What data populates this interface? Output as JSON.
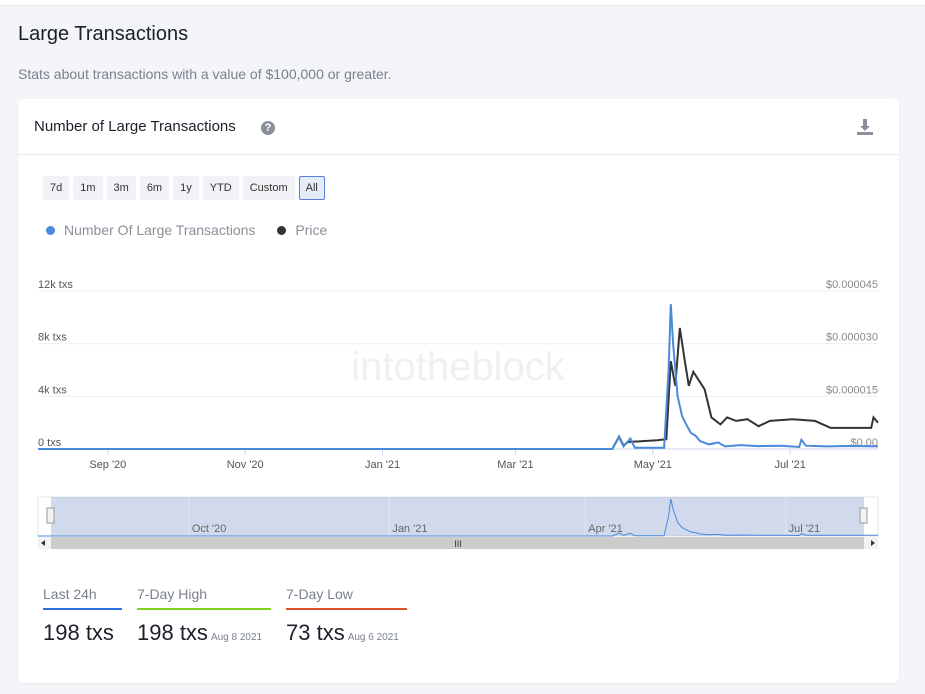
{
  "page": {
    "title": "Large Transactions",
    "subtitle": "Stats about transactions with a value of $100,000 or greater."
  },
  "card": {
    "title": "Number of Large Transactions",
    "help_icon": "?",
    "download_icon": "download-icon"
  },
  "ranges": [
    "7d",
    "1m",
    "3m",
    "6m",
    "1y",
    "YTD",
    "Custom",
    "All"
  ],
  "active_range": "All",
  "chart_data": {
    "type": "line",
    "watermark": "intotheblock",
    "series": [
      {
        "name": "Number Of Large Transactions",
        "color": "#4a89dc",
        "axis": "left",
        "points": [
          [
            0,
            0
          ],
          [
            255,
            0
          ],
          [
            258,
            900
          ],
          [
            260,
            200
          ],
          [
            263,
            800
          ],
          [
            265,
            100
          ],
          [
            278,
            100
          ],
          [
            280,
            6000
          ],
          [
            281,
            11000
          ],
          [
            282,
            8000
          ],
          [
            284,
            4000
          ],
          [
            286,
            2500
          ],
          [
            288,
            1800
          ],
          [
            290,
            1200
          ],
          [
            292,
            1000
          ],
          [
            294,
            600
          ],
          [
            298,
            350
          ],
          [
            302,
            500
          ],
          [
            305,
            200
          ],
          [
            312,
            300
          ],
          [
            320,
            220
          ],
          [
            330,
            250
          ],
          [
            338,
            150
          ],
          [
            339,
            700
          ],
          [
            341,
            250
          ],
          [
            350,
            200
          ],
          [
            360,
            230
          ],
          [
            373,
            200
          ]
        ]
      },
      {
        "name": "Price",
        "color": "#333333",
        "axis": "right",
        "points": [
          [
            0,
            0
          ],
          [
            255,
            0
          ],
          [
            258,
            3.5e-06
          ],
          [
            260,
            1e-06
          ],
          [
            262,
            2e-06
          ],
          [
            275,
            2.5e-06
          ],
          [
            279,
            2.8e-06
          ],
          [
            281,
            2.5e-05
          ],
          [
            283,
            1.8e-05
          ],
          [
            285,
            3.45e-05
          ],
          [
            287,
            2.6e-05
          ],
          [
            289,
            1.8e-05
          ],
          [
            291,
            2.2e-05
          ],
          [
            294,
            1.9e-05
          ],
          [
            296,
            1.7e-05
          ],
          [
            299,
            9e-06
          ],
          [
            303,
            7e-06
          ],
          [
            306,
            9e-06
          ],
          [
            310,
            8e-06
          ],
          [
            315,
            8.5e-06
          ],
          [
            320,
            6.5e-06
          ],
          [
            325,
            8e-06
          ],
          [
            335,
            8.5e-06
          ],
          [
            345,
            8e-06
          ],
          [
            352,
            6e-06
          ],
          [
            370,
            6e-06
          ],
          [
            371,
            9e-06
          ],
          [
            373,
            7.5e-06
          ]
        ]
      }
    ],
    "x_unit": "days since Aug 1 2020",
    "xlim": [
      0,
      373
    ],
    "x_ticks": [
      {
        "label": "Sep '20",
        "day": 31
      },
      {
        "label": "Nov '20",
        "day": 92
      },
      {
        "label": "Jan '21",
        "day": 153
      },
      {
        "label": "Mar '21",
        "day": 212
      },
      {
        "label": "May '21",
        "day": 273
      },
      {
        "label": "Jul '21",
        "day": 334
      }
    ],
    "left_axis": {
      "ylim": [
        0,
        12000
      ],
      "ticks": [
        {
          "label": "0 txs",
          "v": 0
        },
        {
          "label": "4k txs",
          "v": 4000
        },
        {
          "label": "8k txs",
          "v": 8000
        },
        {
          "label": "12k txs",
          "v": 12000
        }
      ]
    },
    "right_axis": {
      "ylim": [
        0,
        4.5e-05
      ],
      "ticks": [
        {
          "label": "$0.00",
          "v": 0
        },
        {
          "label": "$0.000015",
          "v": 1.5e-05
        },
        {
          "label": "$0.000030",
          "v": 3e-05
        },
        {
          "label": "$0.000045",
          "v": 4.5e-05
        }
      ]
    },
    "navigator_ticks": [
      {
        "label": "Oct '20",
        "day": 67
      },
      {
        "label": "Jan '21",
        "day": 156
      },
      {
        "label": "Apr '21",
        "day": 243
      },
      {
        "label": "Jul '21",
        "day": 332
      }
    ]
  },
  "stats": [
    {
      "label": "Last 24h",
      "value": "198 txs",
      "date": "",
      "color": "#2f6fe0"
    },
    {
      "label": "7-Day High",
      "value": "198 txs",
      "date": "Aug 8 2021",
      "color": "#7ed321"
    },
    {
      "label": "7-Day Low",
      "value": "73 txs",
      "date": "Aug 6 2021",
      "color": "#d9512c"
    }
  ]
}
